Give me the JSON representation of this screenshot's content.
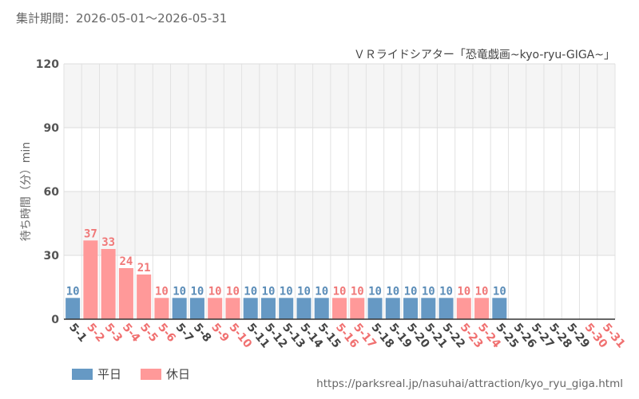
{
  "header": {
    "period_label": "集計期間：2026-05-01～2026-05-31"
  },
  "legend": {
    "weekday_label": "平日",
    "holiday_label": "休日"
  },
  "footer": {
    "source_url": "https://parksreal.jp/nasuhai/attraction/kyo_ryu_giga.html"
  },
  "colors": {
    "weekday": "#6699c4",
    "holiday": "#ff9999",
    "weekday_text": "#5b8db8",
    "holiday_text": "#f07878",
    "tick_weekday": "#444444",
    "tick_holiday": "#f07070",
    "band_light": "#f5f5f5",
    "band_white": "#ffffff"
  },
  "chart_data": {
    "type": "bar",
    "title": "ＶＲライドシアター「恐竜戯画~kyo-ryu-GIGA~」",
    "ylabel": "待ち時間（分）min",
    "xlabel": "",
    "ylim": [
      0,
      120
    ],
    "yticks": [
      0,
      30,
      60,
      90,
      120
    ],
    "grid": true,
    "legend_position": "bottom-left",
    "categories": [
      "5-1",
      "5-2",
      "5-3",
      "5-4",
      "5-5",
      "5-6",
      "5-7",
      "5-8",
      "5-9",
      "5-10",
      "5-11",
      "5-12",
      "5-13",
      "5-14",
      "5-15",
      "5-16",
      "5-17",
      "5-18",
      "5-19",
      "5-20",
      "5-21",
      "5-22",
      "5-23",
      "5-24",
      "5-25",
      "5-26",
      "5-27",
      "5-28",
      "5-29",
      "5-30",
      "5-31"
    ],
    "day_type": [
      "weekday",
      "holiday",
      "holiday",
      "holiday",
      "holiday",
      "holiday",
      "weekday",
      "weekday",
      "holiday",
      "holiday",
      "weekday",
      "weekday",
      "weekday",
      "weekday",
      "weekday",
      "holiday",
      "holiday",
      "weekday",
      "weekday",
      "weekday",
      "weekday",
      "weekday",
      "holiday",
      "holiday",
      "weekday",
      "weekday",
      "weekday",
      "weekday",
      "weekday",
      "holiday",
      "holiday"
    ],
    "values": [
      10,
      37,
      33,
      24,
      21,
      10,
      10,
      10,
      10,
      10,
      10,
      10,
      10,
      10,
      10,
      10,
      10,
      10,
      10,
      10,
      10,
      10,
      10,
      10,
      10,
      null,
      null,
      null,
      null,
      null,
      null
    ],
    "series": [
      {
        "name": "平日"
      },
      {
        "name": "休日"
      }
    ]
  }
}
